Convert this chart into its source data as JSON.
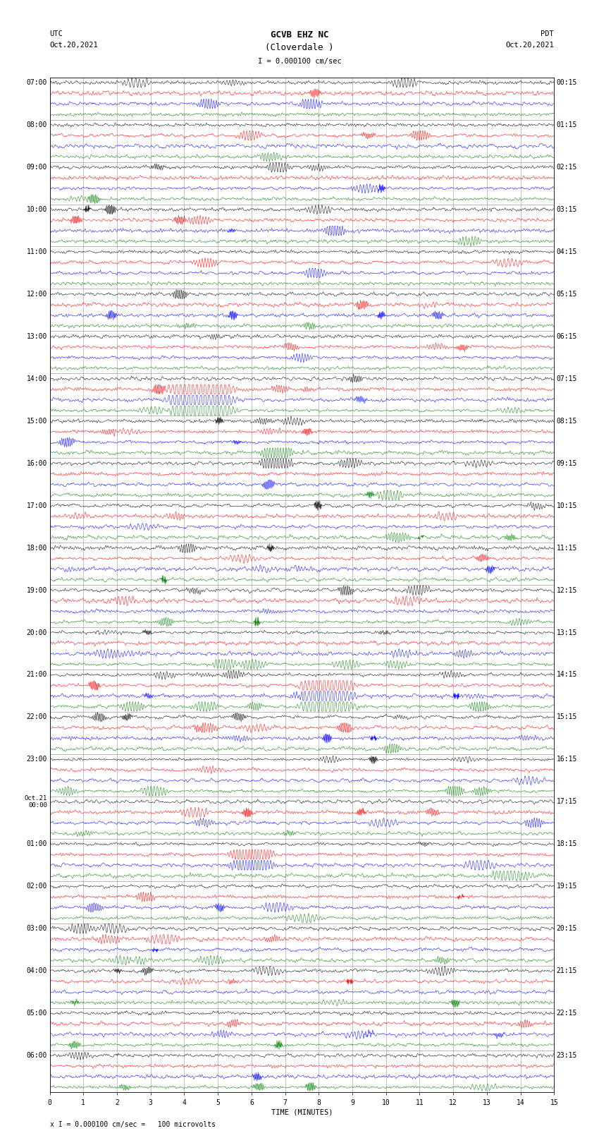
{
  "title_line1": "GCVB EHZ NC",
  "title_line2": "(Cloverdale )",
  "scale_label": "I = 0.000100 cm/sec",
  "utc_label": "UTC\nOct.20,2021",
  "pdt_label": "PDT\nOct.20,2021",
  "xlabel": "TIME (MINUTES)",
  "footer": "x I = 0.000100 cm/sec =   100 microvolts",
  "left_times": [
    "07:00",
    "08:00",
    "09:00",
    "10:00",
    "11:00",
    "12:00",
    "13:00",
    "14:00",
    "15:00",
    "16:00",
    "17:00",
    "18:00",
    "19:00",
    "20:00",
    "21:00",
    "22:00",
    "23:00",
    "Oct.21\n00:00",
    "01:00",
    "02:00",
    "03:00",
    "04:00",
    "05:00",
    "06:00"
  ],
  "right_times": [
    "00:15",
    "01:15",
    "02:15",
    "03:15",
    "04:15",
    "05:15",
    "06:15",
    "07:15",
    "08:15",
    "09:15",
    "10:15",
    "11:15",
    "12:15",
    "13:15",
    "14:15",
    "15:15",
    "16:15",
    "17:15",
    "18:15",
    "19:15",
    "20:15",
    "21:15",
    "22:15",
    "23:15"
  ],
  "colors": [
    "black",
    "red",
    "blue",
    "green"
  ],
  "n_rows": 96,
  "n_minutes": 15,
  "title_fontsize": 9,
  "label_fontsize": 7.5,
  "tick_fontsize": 7
}
